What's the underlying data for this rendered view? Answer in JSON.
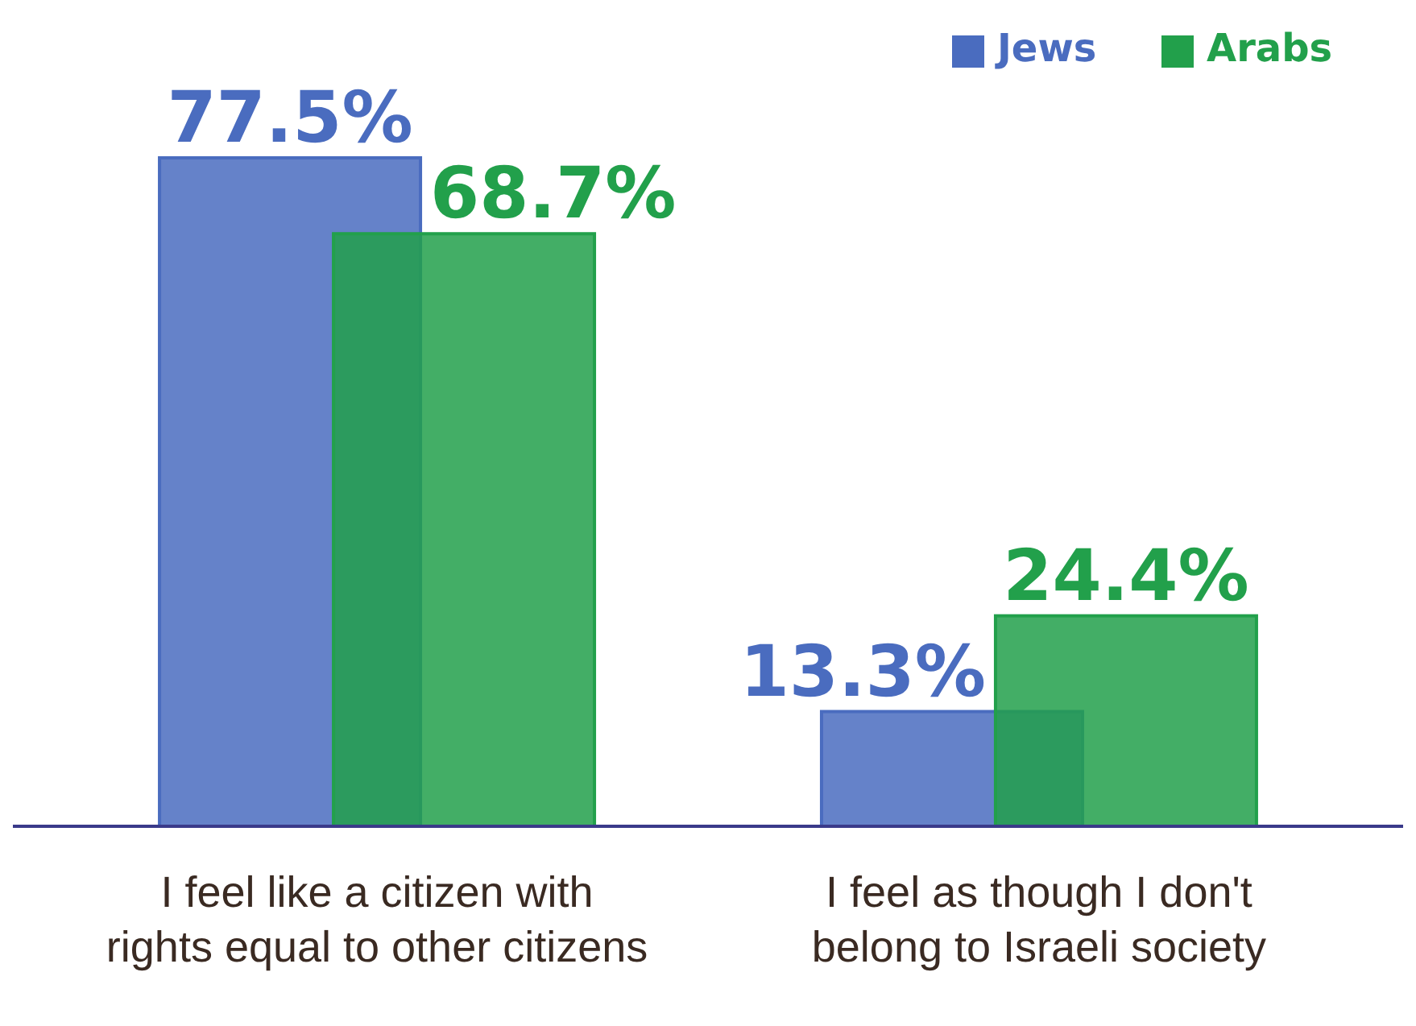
{
  "chart_data": {
    "type": "bar",
    "categories": [
      "I feel like a citizen with rights equal to other citizens",
      "I feel as though I don't belong to Israeli society"
    ],
    "series": [
      {
        "name": "Jews",
        "color": "#4a6cbf",
        "values": [
          77.5,
          13.3
        ],
        "value_labels": [
          "77.5%",
          "13.3%"
        ]
      },
      {
        "name": "Arabs",
        "color": "#22a04b",
        "values": [
          68.7,
          24.4
        ],
        "value_labels": [
          "68.7%",
          "24.4%"
        ]
      }
    ],
    "legend": "top right"
  }
}
